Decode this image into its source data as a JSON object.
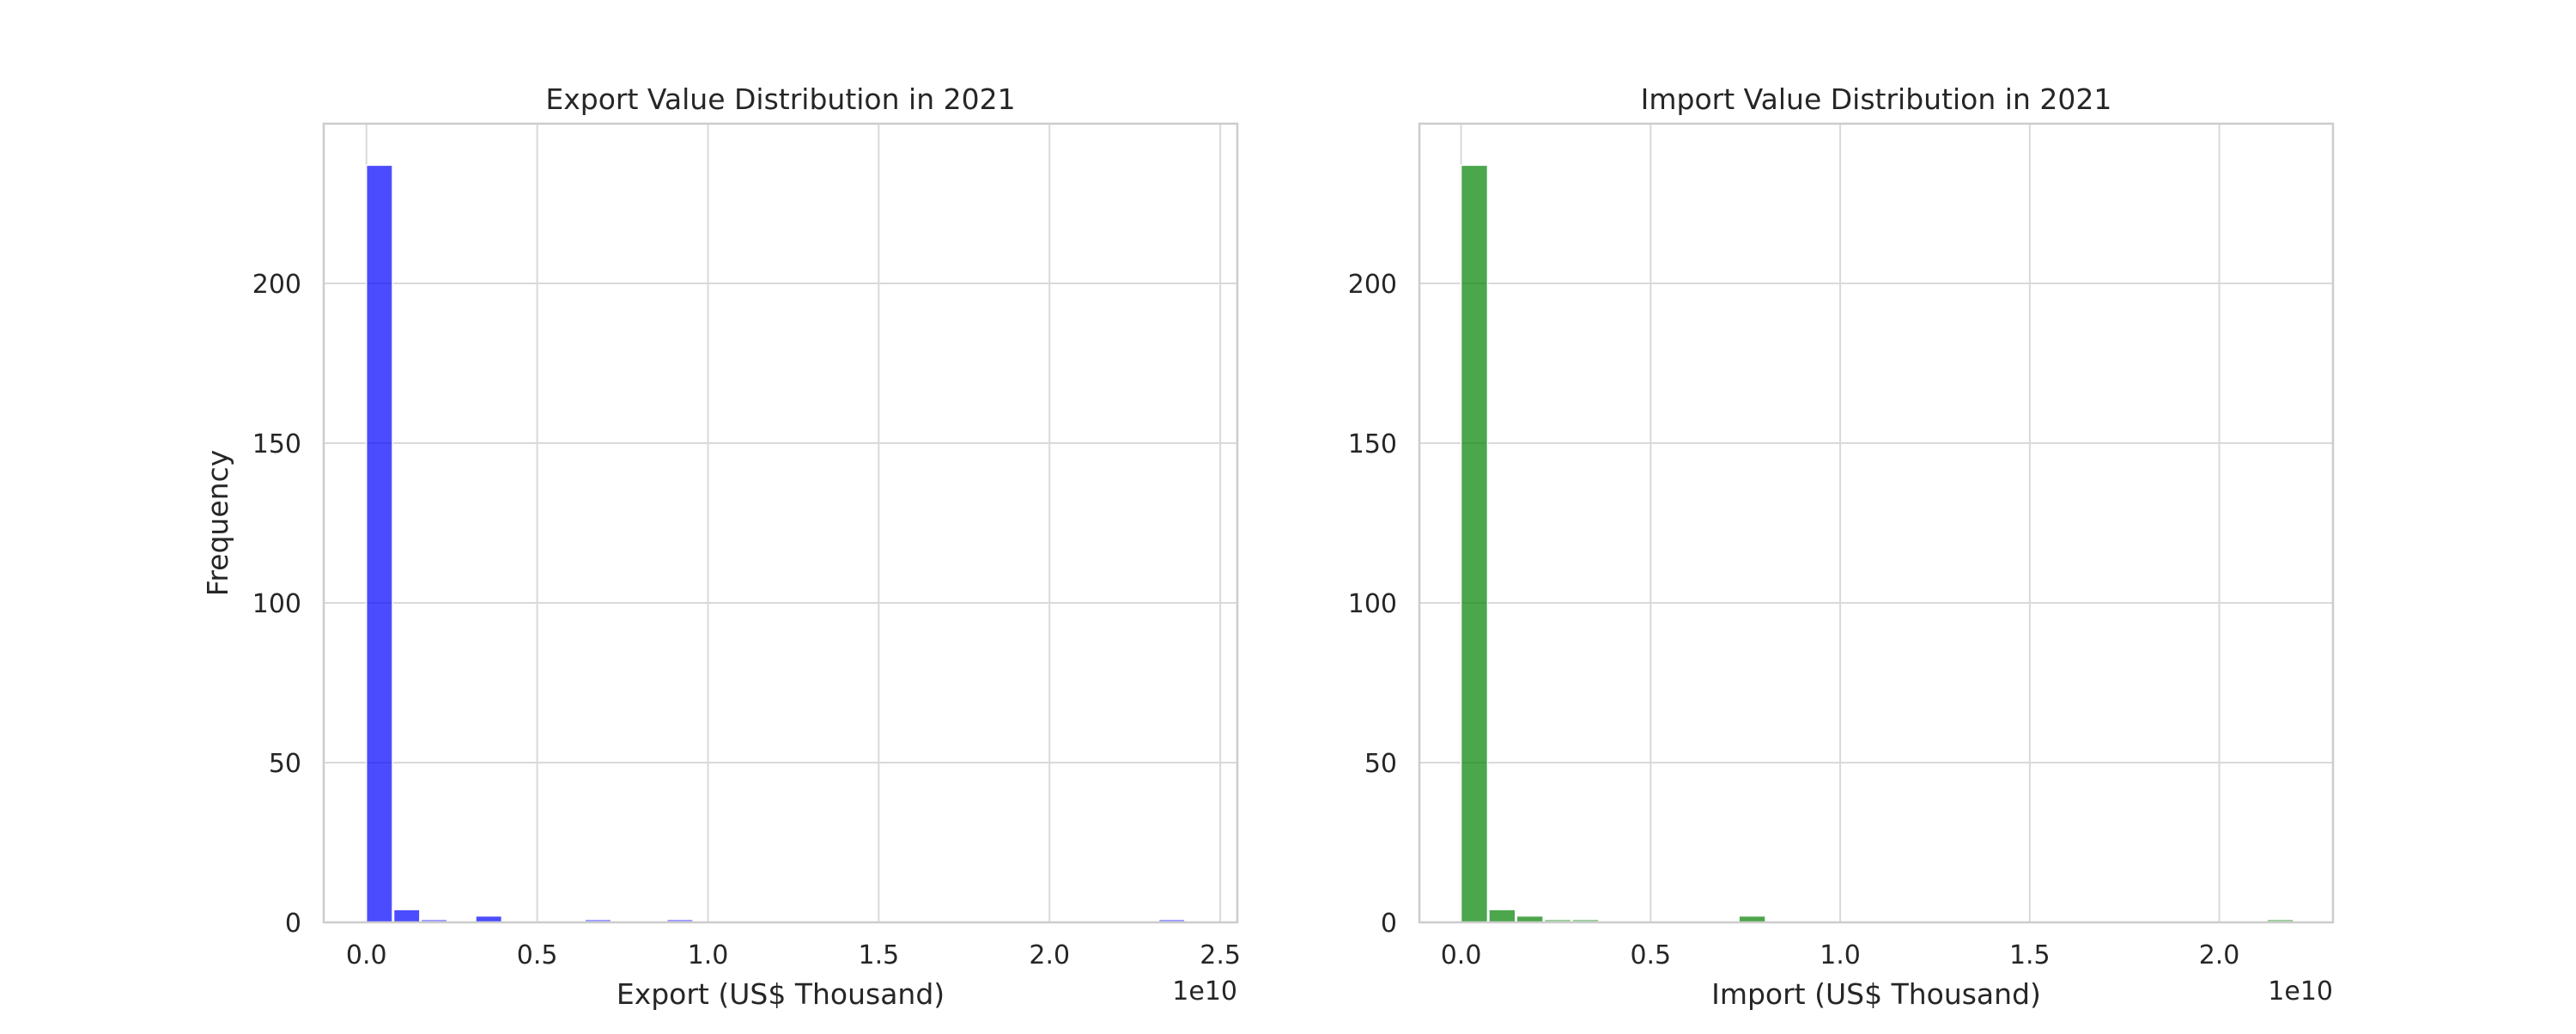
{
  "chart_data": [
    {
      "type": "bar",
      "title": "Export Value Distribution in 2021",
      "xlabel": "Export (US$ Thousand)",
      "ylabel": "Frequency",
      "offset_text": "1e10",
      "color": "#0000ff",
      "xlim": [
        -0.125,
        2.55
      ],
      "ylim": [
        0,
        250
      ],
      "xticks": [
        "0.0",
        "0.5",
        "1.0",
        "1.5",
        "2.0",
        "2.5"
      ],
      "yticks": [
        "0",
        "50",
        "100",
        "150",
        "200"
      ],
      "bin_width": 0.08,
      "bins": [
        {
          "x0": 0.0,
          "count": 237
        },
        {
          "x0": 0.08,
          "count": 4
        },
        {
          "x0": 0.16,
          "count": 1
        },
        {
          "x0": 0.32,
          "count": 2
        },
        {
          "x0": 0.64,
          "count": 1
        },
        {
          "x0": 0.88,
          "count": 1
        },
        {
          "x0": 2.32,
          "count": 1
        }
      ],
      "grid": true
    },
    {
      "type": "bar",
      "title": "Import Value Distribution in 2021",
      "xlabel": "Import (US$ Thousand)",
      "ylabel": "",
      "offset_text": "1e10",
      "color": "#008000",
      "xlim": [
        -0.11,
        2.3
      ],
      "ylim": [
        0,
        250
      ],
      "xticks": [
        "0.0",
        "0.5",
        "1.0",
        "1.5",
        "2.0"
      ],
      "yticks": [
        "0",
        "50",
        "100",
        "150",
        "200"
      ],
      "bin_width": 0.0733,
      "bins": [
        {
          "x0": 0.0,
          "count": 237
        },
        {
          "x0": 0.0733,
          "count": 4
        },
        {
          "x0": 0.1466,
          "count": 2
        },
        {
          "x0": 0.2199,
          "count": 1
        },
        {
          "x0": 0.2932,
          "count": 1
        },
        {
          "x0": 0.733,
          "count": 2
        },
        {
          "x0": 2.126,
          "count": 1
        }
      ],
      "grid": true
    }
  ]
}
